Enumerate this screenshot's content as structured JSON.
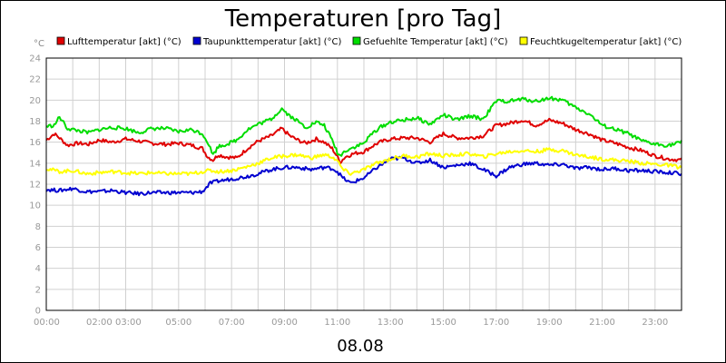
{
  "chart_data": {
    "type": "line",
    "title": "Temperaturen [pro Tag]",
    "y_unit": "°C",
    "date_label": "08.08",
    "ylim": [
      0,
      24
    ],
    "y_ticks": [
      0,
      2,
      4,
      6,
      8,
      10,
      12,
      14,
      16,
      18,
      20,
      22,
      24
    ],
    "xlim": [
      0,
      24
    ],
    "x_ticks": [
      {
        "h": 0,
        "label": "00:00"
      },
      {
        "h": 2.55,
        "label": "02:00 03:00"
      },
      {
        "h": 5,
        "label": "05:00"
      },
      {
        "h": 7,
        "label": "07:00"
      },
      {
        "h": 9,
        "label": "09:00"
      },
      {
        "h": 11,
        "label": "11:00"
      },
      {
        "h": 13,
        "label": "13:00"
      },
      {
        "h": 15,
        "label": "15:00"
      },
      {
        "h": 17,
        "label": "17:00"
      },
      {
        "h": 19,
        "label": "19:00"
      },
      {
        "h": 21,
        "label": "21:00"
      },
      {
        "h": 23,
        "label": "23:00"
      }
    ],
    "grid": true,
    "legend_position": "top",
    "series": [
      {
        "name": "Lufttemperatur [akt] (°C)",
        "color": "#e00000",
        "x": [
          0,
          0.3,
          0.5,
          0.8,
          1.2,
          1.6,
          2,
          2.5,
          3,
          3.5,
          4,
          4.5,
          5,
          5.5,
          5.9,
          6.1,
          6.3,
          6.5,
          6.8,
          7.2,
          7.6,
          8,
          8.5,
          8.9,
          9.2,
          9.5,
          9.8,
          10.2,
          10.5,
          10.8,
          11,
          11.1,
          11.3,
          11.6,
          12,
          12.3,
          12.6,
          13,
          13.5,
          14,
          14.5,
          15,
          15.5,
          16,
          16.5,
          17,
          17.5,
          18,
          18.5,
          19,
          19.5,
          20,
          20.5,
          21,
          21.5,
          22,
          22.5,
          23,
          23.5,
          24
        ],
        "values": [
          16.2,
          16.8,
          16.4,
          15.7,
          15.9,
          15.8,
          16.2,
          16.0,
          16.3,
          16.1,
          15.9,
          15.8,
          15.9,
          15.7,
          15.4,
          14.6,
          14.3,
          14.8,
          14.6,
          14.5,
          15.4,
          16.1,
          16.6,
          17.3,
          16.6,
          16.2,
          15.9,
          16.3,
          16.0,
          15.4,
          14.6,
          14.1,
          14.6,
          14.9,
          15.1,
          15.6,
          16.0,
          16.3,
          16.4,
          16.4,
          16.0,
          16.8,
          16.4,
          16.4,
          16.6,
          17.6,
          17.8,
          18.1,
          17.6,
          18.1,
          17.8,
          17.2,
          16.8,
          16.2,
          15.9,
          15.5,
          15.2,
          14.7,
          14.4,
          14.3
        ]
      },
      {
        "name": "Taupunkttemperatur [akt] (°C)",
        "color": "#0000d0",
        "x": [
          0,
          0.5,
          1,
          1.5,
          2,
          2.5,
          3,
          3.5,
          4,
          4.5,
          5,
          5.5,
          5.9,
          6.2,
          6.5,
          7,
          7.5,
          8,
          8.5,
          9,
          9.5,
          10,
          10.5,
          10.8,
          11,
          11.2,
          11.5,
          12,
          12.5,
          13,
          13.5,
          14,
          14.5,
          15,
          15.5,
          16,
          16.5,
          17,
          17.5,
          18,
          18.5,
          19,
          19.5,
          20,
          20.5,
          21,
          21.5,
          22,
          22.5,
          23,
          23.5,
          24
        ],
        "values": [
          11.5,
          11.4,
          11.6,
          11.3,
          11.3,
          11.4,
          11.2,
          11.1,
          11.2,
          11.2,
          11.2,
          11.2,
          11.3,
          12.1,
          12.3,
          12.5,
          12.7,
          13.0,
          13.4,
          13.6,
          13.6,
          13.4,
          13.6,
          13.5,
          13.2,
          12.6,
          12.1,
          12.6,
          13.6,
          14.4,
          14.5,
          14.0,
          14.3,
          13.6,
          13.8,
          14.0,
          13.4,
          12.8,
          13.6,
          13.9,
          14.0,
          13.8,
          13.9,
          13.5,
          13.6,
          13.4,
          13.5,
          13.3,
          13.3,
          13.2,
          13.1,
          13.0
        ]
      },
      {
        "name": "Gefuehlte Temperatur [akt] (°C)",
        "color": "#00dd00",
        "x": [
          0,
          0.3,
          0.5,
          0.8,
          1.2,
          1.6,
          2,
          2.5,
          3,
          3.5,
          4,
          4.5,
          5,
          5.5,
          5.9,
          6.1,
          6.3,
          6.5,
          6.8,
          7.2,
          7.6,
          8,
          8.5,
          8.9,
          9.2,
          9.5,
          9.8,
          10.2,
          10.5,
          10.8,
          11,
          11.1,
          11.3,
          11.6,
          12,
          12.3,
          12.6,
          13,
          13.5,
          14,
          14.5,
          15,
          15.5,
          16,
          16.5,
          17,
          17.5,
          18,
          18.5,
          19,
          19.5,
          20,
          20.5,
          21,
          21.5,
          22,
          22.5,
          23,
          23.5,
          24
        ],
        "values": [
          17.5,
          17.6,
          18.4,
          17.3,
          17.1,
          16.9,
          17.2,
          17.4,
          17.3,
          16.9,
          17.3,
          17.3,
          17.0,
          17.2,
          16.8,
          16.0,
          14.8,
          15.6,
          15.8,
          16.2,
          17.2,
          17.7,
          18.2,
          19.2,
          18.5,
          18.0,
          17.4,
          17.9,
          17.6,
          16.2,
          15.0,
          14.7,
          15.2,
          15.5,
          15.9,
          16.8,
          17.4,
          17.9,
          18.1,
          18.3,
          17.7,
          18.6,
          18.1,
          18.5,
          18.2,
          19.9,
          19.9,
          20.1,
          19.9,
          20.2,
          20.0,
          19.3,
          18.7,
          17.6,
          17.2,
          16.8,
          16.1,
          15.8,
          15.7,
          16.0
        ]
      },
      {
        "name": "Feuchtkugeltemperatur [akt] (°C)",
        "color": "#ffff00",
        "x": [
          0,
          0.5,
          1,
          1.5,
          2,
          2.5,
          3,
          3.5,
          4,
          4.5,
          5,
          5.5,
          5.9,
          6.2,
          6.5,
          7,
          7.5,
          8,
          8.5,
          9,
          9.5,
          10,
          10.5,
          10.8,
          11,
          11.2,
          11.5,
          12,
          12.5,
          13,
          13.5,
          14,
          14.5,
          15,
          15.5,
          16,
          16.5,
          17,
          17.5,
          18,
          18.5,
          19,
          19.5,
          20,
          20.5,
          21,
          21.5,
          22,
          22.5,
          23,
          23.5,
          24
        ],
        "values": [
          13.5,
          13.2,
          13.3,
          13.0,
          13.1,
          13.2,
          13.1,
          13.0,
          13.1,
          13.0,
          13.0,
          13.0,
          13.2,
          13.3,
          13.2,
          13.3,
          13.6,
          14.0,
          14.5,
          14.7,
          14.8,
          14.5,
          14.8,
          14.6,
          14.2,
          13.4,
          13.0,
          13.4,
          14.0,
          14.4,
          14.7,
          14.6,
          14.9,
          14.7,
          14.8,
          14.9,
          14.6,
          14.9,
          15.1,
          15.2,
          15.1,
          15.3,
          15.2,
          14.8,
          14.6,
          14.4,
          14.3,
          14.2,
          14.0,
          13.9,
          13.8,
          13.6
        ]
      }
    ]
  }
}
